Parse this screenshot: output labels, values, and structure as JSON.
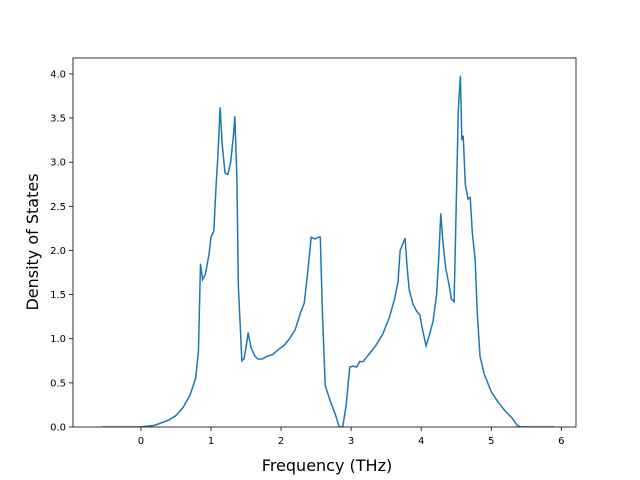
{
  "chart_data": {
    "type": "line",
    "xlabel": "Frequency (THz)",
    "ylabel": "Density of States",
    "x": [
      -0.55,
      0,
      0.2,
      0.4,
      0.5,
      0.6,
      0.7,
      0.78,
      0.82,
      0.85,
      0.88,
      0.92,
      0.97,
      1.0,
      1.04,
      1.07,
      1.1,
      1.13,
      1.16,
      1.2,
      1.24,
      1.28,
      1.32,
      1.34,
      1.37,
      1.39,
      1.42,
      1.44,
      1.47,
      1.5,
      1.53,
      1.57,
      1.63,
      1.67,
      1.73,
      1.8,
      1.88,
      1.95,
      2.05,
      2.12,
      2.2,
      2.28,
      2.33,
      2.38,
      2.43,
      2.48,
      2.53,
      2.56,
      2.59,
      2.63,
      2.7,
      2.78,
      2.83,
      2.88,
      2.93,
      2.98,
      3.03,
      3.08,
      3.12,
      3.17,
      3.25,
      3.35,
      3.45,
      3.55,
      3.62,
      3.67,
      3.7,
      3.75,
      3.77,
      3.8,
      3.83,
      3.88,
      3.93,
      3.98,
      4.02,
      4.07,
      4.12,
      4.17,
      4.22,
      4.25,
      4.28,
      4.31,
      4.35,
      4.4,
      4.43,
      4.47,
      4.5,
      4.53,
      4.56,
      4.58,
      4.6,
      4.63,
      4.67,
      4.7,
      4.73,
      4.77,
      4.8,
      4.84,
      4.9,
      5.0,
      5.1,
      5.2,
      5.3,
      5.37,
      5.42,
      5.9
    ],
    "values": [
      0,
      0,
      0.02,
      0.08,
      0.13,
      0.22,
      0.36,
      0.55,
      0.85,
      1.85,
      1.67,
      1.73,
      1.95,
      2.15,
      2.22,
      2.7,
      3.1,
      3.62,
      3.2,
      2.88,
      2.86,
      3.0,
      3.3,
      3.52,
      2.8,
      1.6,
      1.1,
      0.75,
      0.77,
      0.9,
      1.07,
      0.9,
      0.8,
      0.77,
      0.77,
      0.8,
      0.82,
      0.87,
      0.93,
      1.0,
      1.1,
      1.3,
      1.4,
      1.75,
      2.15,
      2.13,
      2.15,
      2.15,
      1.3,
      0.47,
      0.3,
      0.13,
      0,
      0,
      0.25,
      0.68,
      0.69,
      0.68,
      0.74,
      0.74,
      0.82,
      0.92,
      1.05,
      1.25,
      1.45,
      1.65,
      2.0,
      2.1,
      2.14,
      1.8,
      1.55,
      1.4,
      1.32,
      1.27,
      1.1,
      0.92,
      1.05,
      1.2,
      1.5,
      1.9,
      2.42,
      2.1,
      1.8,
      1.6,
      1.45,
      1.42,
      2.5,
      3.6,
      3.98,
      3.25,
      3.3,
      2.75,
      2.58,
      2.6,
      2.2,
      1.9,
      1.3,
      0.8,
      0.6,
      0.4,
      0.28,
      0.18,
      0.1,
      0.02,
      0,
      0
    ],
    "color": "#1f77b4",
    "xlim": [
      -0.97,
      6.21
    ],
    "ylim": [
      0,
      4.18
    ],
    "xticks": [
      0,
      1,
      2,
      3,
      4,
      5,
      6
    ],
    "yticks": [
      {
        "value": 0,
        "label": "0.0"
      },
      {
        "value": 0.5,
        "label": "0.5"
      },
      {
        "value": 1,
        "label": "1.0"
      },
      {
        "value": 1.5,
        "label": "1.5"
      },
      {
        "value": 2,
        "label": "2.0"
      },
      {
        "value": 2.5,
        "label": "2.5"
      },
      {
        "value": 3,
        "label": "3.0"
      },
      {
        "value": 3.5,
        "label": "3.5"
      },
      {
        "value": 4,
        "label": "4.0"
      }
    ]
  }
}
